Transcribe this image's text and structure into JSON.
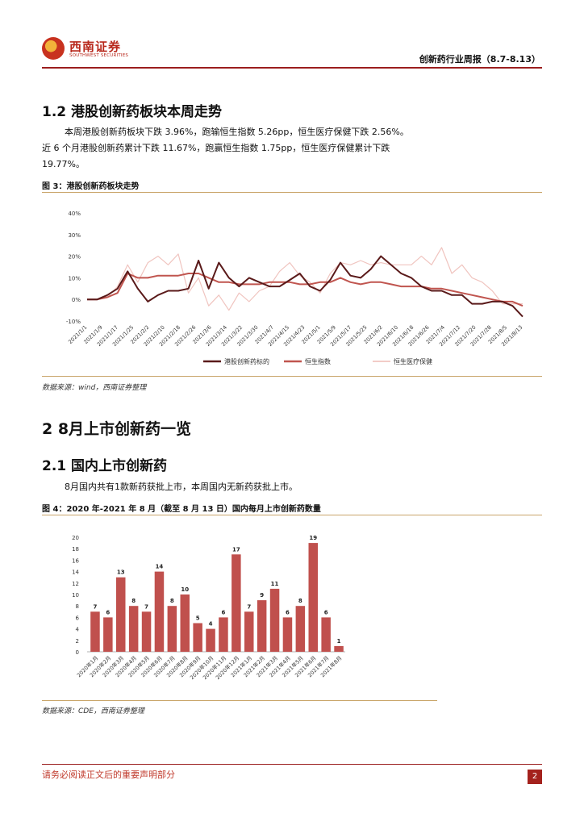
{
  "header": {
    "logo_cn": "西南证券",
    "logo_en": "SOUTHWEST SECURITIES",
    "report_title": "创新药行业周报（8.7-8.13）"
  },
  "section_1_2": {
    "title": "1.2 港股创新药板块本周走势",
    "para_line1": "本周港股创新药板块下跌 3.96%，跑输恒生指数 5.26pp，恒生医疗保健下跌 2.56%。",
    "para_line2": "近 6 个月港股创新药累计下跌 11.67%，跑赢恒生指数 1.75pp，恒生医疗保健累计下跌",
    "para_line3": "19.77%。"
  },
  "figure3": {
    "caption": "图 3：港股创新药板块走势",
    "source": "数据来源：wind，西南证券整理"
  },
  "section_2": {
    "title": "2 8月上市创新药一览"
  },
  "section_2_1": {
    "title": "2.1 国内上市创新药",
    "para": "8月国内共有1款新药获批上市，本周国内无新药获批上市。"
  },
  "figure4": {
    "caption": "图 4：2020 年-2021 年 8 月（截至 8 月 13 日）国内每月上市创新药数量",
    "source": "数据来源：CDE，西南证券整理"
  },
  "footer": {
    "disclaimer": "请务必阅读正文后的重要声明部分",
    "page": "2"
  },
  "chart_data": [
    {
      "type": "line",
      "title": "",
      "ylim": [
        -10,
        40
      ],
      "yticks": [
        "40%",
        "30%",
        "20%",
        "10%",
        "0%",
        "-10%"
      ],
      "xticks": [
        "2021/1/1",
        "2021/1/9",
        "2021/1/17",
        "2021/1/25",
        "2021/2/2",
        "2021/2/10",
        "2021/2/18",
        "2021/2/26",
        "2021/3/6",
        "2021/3/14",
        "2021/3/22",
        "2021/3/30",
        "2021/4/7",
        "2021/4/15",
        "2021/4/23",
        "2021/5/1",
        "2021/5/9",
        "2021/5/17",
        "2021/5/25",
        "2021/6/2",
        "2021/6/10",
        "2021/6/18",
        "2021/6/26",
        "2021/7/4",
        "2021/7/12",
        "2021/7/20",
        "2021/7/28",
        "2021/8/5",
        "2021/8/13"
      ],
      "legend_position": "bottom",
      "series": [
        {
          "name": "港股创新药标的",
          "color": "#5a1a1a",
          "width": 2,
          "values": [
            0,
            0,
            2,
            5,
            13,
            5,
            -1,
            2,
            4,
            4,
            5,
            18,
            5,
            17,
            10,
            6,
            10,
            8,
            6,
            6,
            9,
            12,
            6,
            4,
            9,
            17,
            11,
            10,
            14,
            20,
            16,
            12,
            10,
            6,
            4,
            4,
            2,
            2,
            -2,
            -2,
            -1,
            -1,
            -3,
            -8
          ]
        },
        {
          "name": "恒生指数",
          "color": "#c0554f",
          "width": 2,
          "values": [
            0,
            0,
            1,
            3,
            12,
            10,
            10,
            11,
            11,
            11,
            12,
            12,
            10,
            8,
            8,
            7,
            7,
            7,
            8,
            8,
            8,
            7,
            7,
            8,
            8,
            10,
            8,
            7,
            8,
            8,
            7,
            6,
            6,
            6,
            5,
            5,
            4,
            3,
            2,
            1,
            0,
            -1,
            -1,
            -3
          ]
        },
        {
          "name": "恒生医疗保健",
          "color": "#f0c4bf",
          "width": 1.2,
          "values": [
            0,
            0,
            1,
            6,
            16,
            8,
            17,
            20,
            16,
            21,
            3,
            10,
            -3,
            2,
            -5,
            3,
            -1,
            4,
            6,
            13,
            17,
            11,
            8,
            3,
            12,
            17,
            16,
            18,
            16,
            17,
            16,
            16,
            16,
            20,
            16,
            24,
            12,
            16,
            10,
            8,
            4,
            -2,
            -2,
            -2
          ]
        }
      ]
    },
    {
      "type": "bar",
      "title": "",
      "ylim": [
        0,
        20
      ],
      "yticks": [
        0,
        2,
        4,
        6,
        8,
        10,
        12,
        14,
        16,
        18,
        20
      ],
      "categories": [
        "2020年1月",
        "2020年2月",
        "2020年3月",
        "2020年4月",
        "2020年5月",
        "2020年6月",
        "2020年7月",
        "2020年8月",
        "2020年9月",
        "2020年10月",
        "2020年11月",
        "2020年12月",
        "2021年1月",
        "2021年2月",
        "2021年3月",
        "2021年4月",
        "2021年5月",
        "2021年6月",
        "2021年7月",
        "2021年8月"
      ],
      "values": [
        7,
        6,
        13,
        8,
        7,
        14,
        8,
        10,
        5,
        4,
        6,
        17,
        7,
        9,
        11,
        6,
        8,
        19,
        6,
        1
      ],
      "color": "#c0504d"
    }
  ]
}
